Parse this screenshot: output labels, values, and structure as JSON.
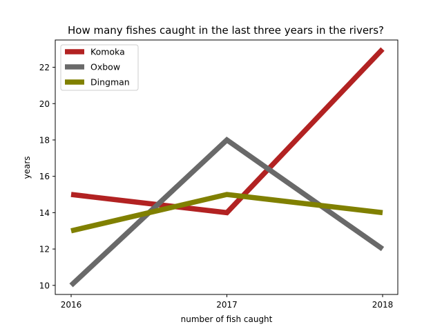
{
  "chart_data": {
    "type": "line",
    "title": "How many fishes caught in the last three years in the rivers?",
    "xlabel": "number of fish caught",
    "ylabel": "years",
    "x": [
      "2016",
      "2017",
      "2018"
    ],
    "ylim": [
      9.5,
      23.5
    ],
    "yticks": [
      10,
      12,
      14,
      16,
      18,
      20,
      22
    ],
    "grid": false,
    "legend_position": "top-left",
    "series": [
      {
        "name": "Komoka",
        "color": "#b22222",
        "values": [
          15,
          14,
          23
        ]
      },
      {
        "name": "Oxbow",
        "color": "#696969",
        "values": [
          10,
          18,
          12
        ]
      },
      {
        "name": "Dingman",
        "color": "#808000",
        "values": [
          13,
          15,
          14
        ]
      }
    ]
  }
}
